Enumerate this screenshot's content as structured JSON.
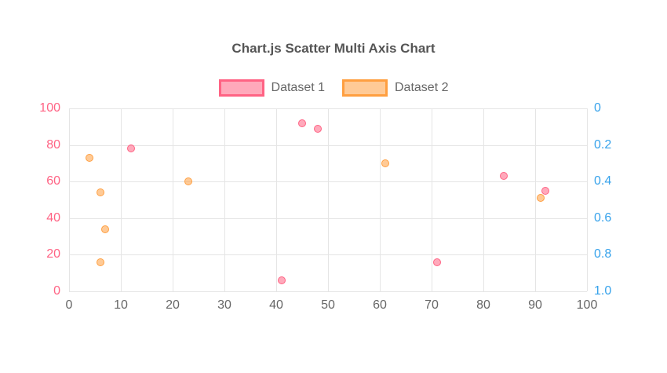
{
  "chart_data": {
    "type": "scatter",
    "title": "Chart.js Scatter Multi Axis Chart",
    "background": "#ffffff",
    "grid_color": "#e5e5e5",
    "legend_text_color": "#666666",
    "x_axis": {
      "min": 0,
      "max": 100,
      "ticks": [
        "0",
        "10",
        "20",
        "30",
        "40",
        "50",
        "60",
        "70",
        "80",
        "90",
        "100"
      ],
      "tick_color": "#666666",
      "grid": true
    },
    "y_axis_left": {
      "min": 0,
      "max": 100,
      "ticks_bottom_to_top": [
        "0",
        "20",
        "40",
        "60",
        "80",
        "100"
      ],
      "tick_color": "#ff6384",
      "grid": true
    },
    "y_axis_right": {
      "min": 0,
      "max": 1,
      "reversed": true,
      "ticks_top_to_bottom": [
        "0",
        "0.2",
        "0.4",
        "0.6",
        "0.8",
        "1.0"
      ],
      "tick_color": "#36a2eb",
      "grid": false
    },
    "series": [
      {
        "name": "Dataset 1",
        "axis": "left",
        "border_color": "#ff6384",
        "fill_color": "rgba(255,99,132,0.55)",
        "points": [
          {
            "x": 12,
            "y": 78
          },
          {
            "x": 41,
            "y": 6
          },
          {
            "x": 45,
            "y": 92
          },
          {
            "x": 48,
            "y": 89
          },
          {
            "x": 71,
            "y": 16
          },
          {
            "x": 84,
            "y": 63
          },
          {
            "x": 92,
            "y": 55
          }
        ]
      },
      {
        "name": "Dataset 2",
        "axis": "right",
        "border_color": "#ff9f40",
        "fill_color": "rgba(255,159,64,0.55)",
        "points": [
          {
            "x": 4,
            "y": 0.27
          },
          {
            "x": 6,
            "y": 0.46
          },
          {
            "x": 7,
            "y": 0.66
          },
          {
            "x": 6,
            "y": 0.84
          },
          {
            "x": 23,
            "y": 0.4
          },
          {
            "x": 61,
            "y": 0.3
          },
          {
            "x": 91,
            "y": 0.49
          }
        ]
      }
    ]
  }
}
